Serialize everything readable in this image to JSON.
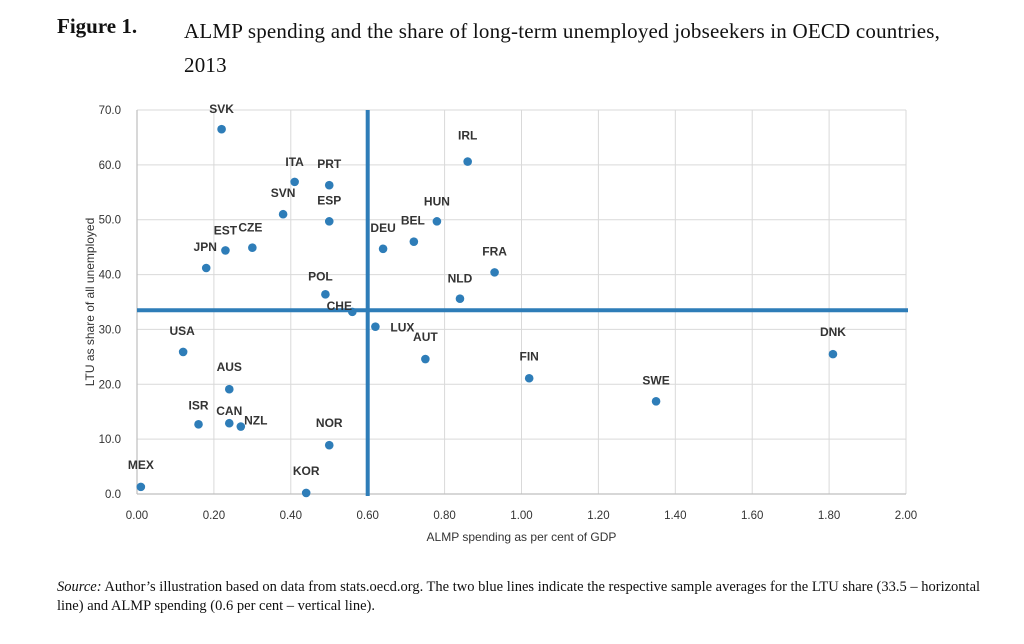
{
  "figure": {
    "label": "Figure 1.",
    "title": "ALMP spending and the share of long-term unemployed jobseekers in OECD countries, 2013"
  },
  "source": {
    "prefix": "Source:",
    "text": " Author’s illustration based on data from stats.oecd.org. The two blue lines indicate the respective sample averages for the LTU share (33.5 – horizontal line) and ALMP spending (0.6 per cent – vertical line)."
  },
  "colors": {
    "point": "#2E7DB8",
    "average_line": "#2E7DB8",
    "grid": "#D9D9D9",
    "axis": "#BFBFBF",
    "text": "#333333"
  },
  "chart_data": {
    "type": "scatter",
    "xlabel": "ALMP spending as per cent of GDP",
    "ylabel": "LTU as share of all unemployed",
    "xlim": [
      0,
      2
    ],
    "ylim": [
      0,
      70
    ],
    "x_ticks": [
      "0.00",
      "0.20",
      "0.40",
      "0.60",
      "0.80",
      "1.00",
      "1.20",
      "1.40",
      "1.60",
      "1.80",
      "2.00"
    ],
    "y_ticks": [
      "0.0",
      "10.0",
      "20.0",
      "30.0",
      "40.0",
      "50.0",
      "60.0",
      "70.0"
    ],
    "grid": true,
    "reference_lines": {
      "horizontal_y": 33.5,
      "vertical_x": 0.6
    },
    "points": [
      {
        "label": "SVK",
        "x": 0.22,
        "y": 66.5
      },
      {
        "label": "IRL",
        "x": 0.86,
        "y": 60.6
      },
      {
        "label": "ITA",
        "x": 0.41,
        "y": 56.9
      },
      {
        "label": "PRT",
        "x": 0.5,
        "y": 56.3
      },
      {
        "label": "SVN",
        "x": 0.38,
        "y": 51.0
      },
      {
        "label": "ESP",
        "x": 0.5,
        "y": 49.7
      },
      {
        "label": "HUN",
        "x": 0.78,
        "y": 49.7
      },
      {
        "label": "BEL",
        "x": 0.72,
        "y": 46.0
      },
      {
        "label": "DEU",
        "x": 0.64,
        "y": 44.7
      },
      {
        "label": "EST",
        "x": 0.23,
        "y": 44.4
      },
      {
        "label": "CZE",
        "x": 0.3,
        "y": 44.9
      },
      {
        "label": "JPN",
        "x": 0.18,
        "y": 41.2
      },
      {
        "label": "FRA",
        "x": 0.93,
        "y": 40.4
      },
      {
        "label": "POL",
        "x": 0.49,
        "y": 36.4
      },
      {
        "label": "NLD",
        "x": 0.84,
        "y": 35.6
      },
      {
        "label": "CHE",
        "x": 0.56,
        "y": 33.2
      },
      {
        "label": "LUX",
        "x": 0.62,
        "y": 30.5
      },
      {
        "label": "USA",
        "x": 0.12,
        "y": 25.9
      },
      {
        "label": "DNK",
        "x": 1.81,
        "y": 25.5
      },
      {
        "label": "AUT",
        "x": 0.75,
        "y": 24.6
      },
      {
        "label": "FIN",
        "x": 1.02,
        "y": 21.1
      },
      {
        "label": "AUS",
        "x": 0.24,
        "y": 19.1
      },
      {
        "label": "SWE",
        "x": 1.35,
        "y": 16.9
      },
      {
        "label": "ISR",
        "x": 0.16,
        "y": 12.7
      },
      {
        "label": "CAN",
        "x": 0.24,
        "y": 12.9
      },
      {
        "label": "NZL",
        "x": 0.27,
        "y": 12.3
      },
      {
        "label": "NOR",
        "x": 0.5,
        "y": 8.9
      },
      {
        "label": "MEX",
        "x": 0.01,
        "y": 1.3
      },
      {
        "label": "KOR",
        "x": 0.44,
        "y": 0.2
      }
    ]
  }
}
